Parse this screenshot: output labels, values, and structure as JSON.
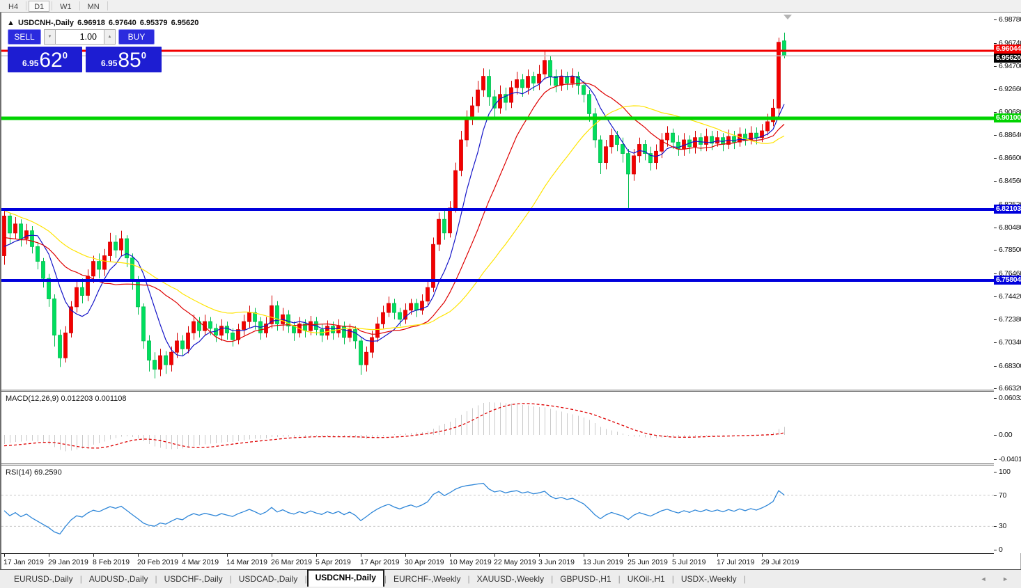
{
  "toolbar": {
    "timeframes": [
      "H4",
      "D1",
      "W1",
      "MN"
    ],
    "active": "D1"
  },
  "chart_header": {
    "arrow": "▲",
    "symbol": "USDCNH-,Daily",
    "open": "6.96918",
    "high": "6.97640",
    "low": "6.95379",
    "close": "6.95620"
  },
  "trade_panel": {
    "sell_label": "SELL",
    "buy_label": "BUY",
    "volume": "1.00",
    "vol_down": "▼",
    "vol_up": "▲",
    "sell_price_prefix": "6.95",
    "sell_price_pips": "62",
    "sell_price_sup": "0",
    "buy_price_prefix": "6.95",
    "buy_price_pips": "85",
    "buy_price_sup": "0"
  },
  "price_axis": {
    "ticks": [
      "6.98780",
      "6.96740",
      "6.94700",
      "6.92660",
      "6.90680",
      "6.88640",
      "6.86600",
      "6.84560",
      "6.82520",
      "6.80480",
      "6.78500",
      "6.76460",
      "6.74420",
      "6.72380",
      "6.70340",
      "6.68300",
      "6.66320"
    ],
    "badges": [
      {
        "value": "6.96044",
        "price": 6.96044,
        "bg": "#F20000",
        "fg": "#FFFFFF",
        "adj": -9
      },
      {
        "value": "6.95620",
        "price": 6.9562,
        "bg": "#000000",
        "fg": "#FFFFFF",
        "adj": -3
      },
      {
        "value": "6.90100",
        "price": 6.901,
        "bg": "#00D300",
        "fg": "#FFFFFF",
        "adj": -7
      },
      {
        "value": "6.82103",
        "price": 6.82103,
        "bg": "#0000DC",
        "fg": "#FFFFFF",
        "adj": -7
      },
      {
        "value": "6.75804",
        "price": 6.75804,
        "bg": "#0000DC",
        "fg": "#FFFFFF",
        "adj": -7
      }
    ]
  },
  "macd_panel": {
    "label": "MACD(12,26,9) 0.012203 0.001108",
    "axis": [
      {
        "text": "0.060329",
        "v": 0.060329
      },
      {
        "text": "0.00",
        "v": 0
      },
      {
        "text": "-0.040135",
        "v": -0.040135
      }
    ]
  },
  "rsi_panel": {
    "label": "RSI(14) 69.2590",
    "axis": [
      {
        "text": "100",
        "v": 100
      },
      {
        "text": "70",
        "v": 70
      },
      {
        "text": "30",
        "v": 30
      },
      {
        "text": "0",
        "v": 0
      }
    ],
    "levels": [
      70,
      30
    ]
  },
  "time_axis": {
    "labels": [
      "17 Jan 2019",
      "29 Jan 2019",
      "8 Feb 2019",
      "20 Feb 2019",
      "4 Mar 2019",
      "14 Mar 2019",
      "26 Mar 2019",
      "5 Apr 2019",
      "17 Apr 2019",
      "30 Apr 2019",
      "10 May 2019",
      "22 May 2019",
      "3 Jun 2019",
      "13 Jun 2019",
      "25 Jun 2019",
      "5 Jul 2019",
      "17 Jul 2019",
      "29 Jul 2019"
    ]
  },
  "tabs": {
    "items": [
      "EURUSD-,Daily",
      "AUDUSD-,Daily",
      "USDCHF-,Daily",
      "USDCAD-,Daily",
      "USDCNH-,Daily",
      "EURCHF-,Weekly",
      "XAUUSD-,Weekly",
      "GBPUSD-,H1",
      "UKOil-,H1",
      "USDX-,Weekly"
    ],
    "active": "USDCNH-,Daily",
    "separator": "|",
    "scroll_left": "◄",
    "scroll_right": "►"
  },
  "chart_data": {
    "type": "candlestick+indicators",
    "symbol": "USDCNH-",
    "timeframe": "Daily",
    "bull_color": "#F20000",
    "bear_color": "#00DE5E",
    "bull_wick": "#D40000",
    "bear_wick": "#00BC4E",
    "price_range_visible": [
      6.662,
      6.994
    ],
    "hlines": [
      {
        "price": 6.96044,
        "color": "#F20000",
        "width": 3
      },
      {
        "price": 6.901,
        "color": "#00D300",
        "width": 5
      },
      {
        "price": 6.82103,
        "color": "#0000DC",
        "width": 4
      },
      {
        "price": 6.75804,
        "color": "#0000DC",
        "width": 4
      }
    ],
    "bid_line": {
      "price": 6.9562,
      "color": "#C4C4C4",
      "width": 1.5
    },
    "moving_averages": [
      {
        "period": 7,
        "color": "#1414C8"
      },
      {
        "period": 16,
        "color": "#DE0000"
      },
      {
        "period": 32,
        "color": "#FFE400"
      }
    ],
    "macd": {
      "fast": 12,
      "slow": 26,
      "signal": 9,
      "value": 0.012203,
      "signal_value": 0.001108,
      "axis_max": 0.060329,
      "axis_min": -0.040135,
      "bar_color": "#C9C9C9",
      "signal_color": "#DE0000"
    },
    "rsi": {
      "period": 14,
      "value": 69.259,
      "color": "#2E86D8",
      "levels": [
        70,
        30
      ]
    },
    "warmup_closes": [
      6.878,
      6.872,
      6.876,
      6.868,
      6.862,
      6.866,
      6.858,
      6.852,
      6.856,
      6.848,
      6.842,
      6.846,
      6.838,
      6.832,
      6.836,
      6.828,
      6.822,
      6.826,
      6.818,
      6.812,
      6.816,
      6.808,
      6.802,
      6.806,
      6.798,
      6.792,
      6.796,
      6.79,
      6.786,
      6.79,
      6.784,
      6.78,
      6.784,
      6.778
    ],
    "candles": [
      [
        6.78,
        6.82,
        6.772,
        6.815
      ],
      [
        6.815,
        6.818,
        6.79,
        6.8
      ],
      [
        6.8,
        6.814,
        6.795,
        6.808
      ],
      [
        6.808,
        6.812,
        6.788,
        6.795
      ],
      [
        6.795,
        6.808,
        6.79,
        6.802
      ],
      [
        6.802,
        6.806,
        6.782,
        6.788
      ],
      [
        6.788,
        6.792,
        6.768,
        6.775
      ],
      [
        6.775,
        6.778,
        6.752,
        6.76
      ],
      [
        6.76,
        6.764,
        6.735,
        6.742
      ],
      [
        6.742,
        6.746,
        6.7,
        6.71
      ],
      [
        6.71,
        6.715,
        6.682,
        6.69
      ],
      [
        6.69,
        6.718,
        6.686,
        6.712
      ],
      [
        6.712,
        6.74,
        6.708,
        6.735
      ],
      [
        6.735,
        6.758,
        6.73,
        6.752
      ],
      [
        6.752,
        6.76,
        6.738,
        6.745
      ],
      [
        6.745,
        6.768,
        6.74,
        6.762
      ],
      [
        6.762,
        6.78,
        6.756,
        6.775
      ],
      [
        6.775,
        6.782,
        6.76,
        6.768
      ],
      [
        6.768,
        6.786,
        6.762,
        6.78
      ],
      [
        6.78,
        6.8,
        6.775,
        6.792
      ],
      [
        6.792,
        6.798,
        6.778,
        6.785
      ],
      [
        6.785,
        6.802,
        6.78,
        6.795
      ],
      [
        6.795,
        6.798,
        6.77,
        6.778
      ],
      [
        6.778,
        6.782,
        6.75,
        6.758
      ],
      [
        6.758,
        6.762,
        6.728,
        6.735
      ],
      [
        6.735,
        6.738,
        6.698,
        6.705
      ],
      [
        6.705,
        6.71,
        6.678,
        6.688
      ],
      [
        6.688,
        6.695,
        6.672,
        6.68
      ],
      [
        6.68,
        6.698,
        6.674,
        6.692
      ],
      [
        6.692,
        6.696,
        6.676,
        6.684
      ],
      [
        6.684,
        6.7,
        6.678,
        6.695
      ],
      [
        6.695,
        6.712,
        6.69,
        6.705
      ],
      [
        6.705,
        6.71,
        6.692,
        6.698
      ],
      [
        6.698,
        6.718,
        6.694,
        6.712
      ],
      [
        6.712,
        6.728,
        6.706,
        6.722
      ],
      [
        6.722,
        6.726,
        6.708,
        6.714
      ],
      [
        6.714,
        6.728,
        6.71,
        6.722
      ],
      [
        6.722,
        6.726,
        6.71,
        6.716
      ],
      [
        6.716,
        6.72,
        6.704,
        6.71
      ],
      [
        6.71,
        6.724,
        6.705,
        6.718
      ],
      [
        6.718,
        6.722,
        6.706,
        6.712
      ],
      [
        6.712,
        6.716,
        6.7,
        6.706
      ],
      [
        6.706,
        6.72,
        6.702,
        6.715
      ],
      [
        6.715,
        6.728,
        6.71,
        6.722
      ],
      [
        6.722,
        6.736,
        6.716,
        6.73
      ],
      [
        6.73,
        6.734,
        6.715,
        6.722
      ],
      [
        6.722,
        6.726,
        6.706,
        6.712
      ],
      [
        6.712,
        6.726,
        6.708,
        6.72
      ],
      [
        6.72,
        6.745,
        6.716,
        6.736
      ],
      [
        6.736,
        6.74,
        6.714,
        6.72
      ],
      [
        6.72,
        6.734,
        6.714,
        6.728
      ],
      [
        6.728,
        6.732,
        6.712,
        6.718
      ],
      [
        6.718,
        6.722,
        6.705,
        6.712
      ],
      [
        6.712,
        6.726,
        6.708,
        6.72
      ],
      [
        6.72,
        6.724,
        6.708,
        6.714
      ],
      [
        6.714,
        6.727,
        6.71,
        6.722
      ],
      [
        6.722,
        6.726,
        6.71,
        6.715
      ],
      [
        6.715,
        6.72,
        6.704,
        6.71
      ],
      [
        6.71,
        6.723,
        6.706,
        6.718
      ],
      [
        6.718,
        6.722,
        6.706,
        6.712
      ],
      [
        6.712,
        6.724,
        6.708,
        6.718
      ],
      [
        6.718,
        6.722,
        6.702,
        6.708
      ],
      [
        6.708,
        6.72,
        6.704,
        6.715
      ],
      [
        6.715,
        6.718,
        6.698,
        6.705
      ],
      [
        6.705,
        6.708,
        6.675,
        6.684
      ],
      [
        6.684,
        6.7,
        6.678,
        6.695
      ],
      [
        6.695,
        6.714,
        6.69,
        6.708
      ],
      [
        6.708,
        6.726,
        6.704,
        6.72
      ],
      [
        6.72,
        6.736,
        6.716,
        6.73
      ],
      [
        6.73,
        6.744,
        6.726,
        6.738
      ],
      [
        6.738,
        6.742,
        6.724,
        6.73
      ],
      [
        6.73,
        6.734,
        6.718,
        6.724
      ],
      [
        6.724,
        6.738,
        6.72,
        6.732
      ],
      [
        6.732,
        6.742,
        6.728,
        6.738
      ],
      [
        6.738,
        6.742,
        6.726,
        6.732
      ],
      [
        6.732,
        6.746,
        6.728,
        6.74
      ],
      [
        6.74,
        6.758,
        6.736,
        6.752
      ],
      [
        6.752,
        6.796,
        6.748,
        6.79
      ],
      [
        6.79,
        6.818,
        6.784,
        6.812
      ],
      [
        6.812,
        6.82,
        6.794,
        6.8
      ],
      [
        6.8,
        6.828,
        6.796,
        6.822
      ],
      [
        6.822,
        6.862,
        6.818,
        6.855
      ],
      [
        6.855,
        6.89,
        6.85,
        6.882
      ],
      [
        6.882,
        6.908,
        6.876,
        6.9
      ],
      [
        6.9,
        6.92,
        6.895,
        6.912
      ],
      [
        6.912,
        6.934,
        6.906,
        6.926
      ],
      [
        6.926,
        6.945,
        6.92,
        6.938
      ],
      [
        6.938,
        6.944,
        6.912,
        6.92
      ],
      [
        6.92,
        6.926,
        6.902,
        6.91
      ],
      [
        6.91,
        6.93,
        6.905,
        6.922
      ],
      [
        6.922,
        6.928,
        6.908,
        6.915
      ],
      [
        6.915,
        6.934,
        6.91,
        6.928
      ],
      [
        6.928,
        6.942,
        6.922,
        6.935
      ],
      [
        6.935,
        6.94,
        6.92,
        6.928
      ],
      [
        6.928,
        6.944,
        6.922,
        6.938
      ],
      [
        6.938,
        6.942,
        6.925,
        6.932
      ],
      [
        6.932,
        6.948,
        6.926,
        6.94
      ],
      [
        6.94,
        6.961,
        6.935,
        6.952
      ],
      [
        6.952,
        6.956,
        6.93,
        6.938
      ],
      [
        6.938,
        6.944,
        6.924,
        6.93
      ],
      [
        6.93,
        6.944,
        6.925,
        6.938
      ],
      [
        6.938,
        6.942,
        6.926,
        6.932
      ],
      [
        6.932,
        6.945,
        6.928,
        6.938
      ],
      [
        6.938,
        6.942,
        6.922,
        6.93
      ],
      [
        6.93,
        6.934,
        6.915,
        6.922
      ],
      [
        6.922,
        6.926,
        6.898,
        6.905
      ],
      [
        6.905,
        6.91,
        6.875,
        6.882
      ],
      [
        6.882,
        6.886,
        6.852,
        6.862
      ],
      [
        6.862,
        6.882,
        6.856,
        6.876
      ],
      [
        6.876,
        6.892,
        6.87,
        6.886
      ],
      [
        6.886,
        6.89,
        6.872,
        6.878
      ],
      [
        6.878,
        6.884,
        6.862,
        6.87
      ],
      [
        6.87,
        6.874,
        6.822,
        6.852
      ],
      [
        6.852,
        6.874,
        6.846,
        6.868
      ],
      [
        6.868,
        6.884,
        6.862,
        6.878
      ],
      [
        6.878,
        6.882,
        6.864,
        6.87
      ],
      [
        6.87,
        6.876,
        6.855,
        6.862
      ],
      [
        6.862,
        6.878,
        6.856,
        6.872
      ],
      [
        6.872,
        6.888,
        6.866,
        6.882
      ],
      [
        6.882,
        6.894,
        6.876,
        6.888
      ],
      [
        6.888,
        6.892,
        6.874,
        6.88
      ],
      [
        6.88,
        6.886,
        6.868,
        6.874
      ],
      [
        6.874,
        6.888,
        6.868,
        6.882
      ],
      [
        6.882,
        6.886,
        6.87,
        6.876
      ],
      [
        6.876,
        6.89,
        6.87,
        6.884
      ],
      [
        6.884,
        6.888,
        6.872,
        6.878
      ],
      [
        6.878,
        6.892,
        6.872,
        6.885
      ],
      [
        6.885,
        6.89,
        6.873,
        6.879
      ],
      [
        6.879,
        6.89,
        6.876,
        6.884
      ],
      [
        6.884,
        6.888,
        6.872,
        6.878
      ],
      [
        6.878,
        6.891,
        6.874,
        6.885
      ],
      [
        6.885,
        6.89,
        6.874,
        6.88
      ],
      [
        6.88,
        6.893,
        6.876,
        6.887
      ],
      [
        6.887,
        6.892,
        6.877,
        6.882
      ],
      [
        6.882,
        6.894,
        6.878,
        6.888
      ],
      [
        6.888,
        6.893,
        6.878,
        6.884
      ],
      [
        6.884,
        6.896,
        6.88,
        6.89
      ],
      [
        6.89,
        6.905,
        6.886,
        6.898
      ],
      [
        6.898,
        6.918,
        6.894,
        6.91
      ],
      [
        6.91,
        6.972,
        6.902,
        6.968
      ],
      [
        6.96918,
        6.9764,
        6.95379,
        6.9562
      ]
    ]
  }
}
